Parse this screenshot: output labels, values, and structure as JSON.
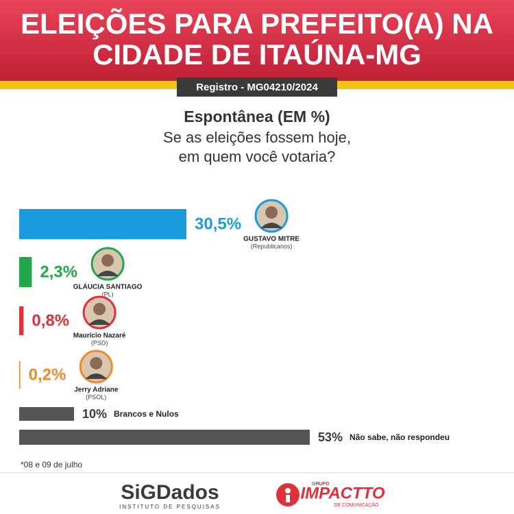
{
  "header": {
    "title_lines": [
      "ELEIÇÕES PARA PREFEITO(A) NA",
      "CIDADE DE ITAÚNA-MG"
    ],
    "registro": "Registro - MG04210/2024"
  },
  "chart_data": {
    "type": "bar",
    "title": "Espontânea (EM %)",
    "subtitle_lines": [
      "Se as eleições fossem hoje,",
      "em quem você votaria?"
    ],
    "categories": [
      "GUSTAVO MITRE",
      "GLÁUCIA SANTIAGO",
      "Maurício Nazaré",
      "Jerry Adriane",
      "Brancos e Nulos",
      "Não sabe, não respondeu"
    ],
    "parties": [
      "(Republicanos)",
      "(PL)",
      "(PSD)",
      "(PSOL)",
      null,
      null
    ],
    "values": [
      30.5,
      2.3,
      0.8,
      0.2,
      10,
      53
    ],
    "value_labels": [
      "30,5%",
      "2,3%",
      "0,8%",
      "0,2%",
      "10%",
      "53%"
    ],
    "colors": [
      "#1a9be0",
      "#22a84a",
      "#e0303a",
      "#f08a2a",
      "#555555",
      "#555555"
    ]
  },
  "footnote": "*08 e 09 de julho",
  "footer": {
    "sigdados": "SiGDados",
    "sigdados_sub": "INSTITUTO DE PESQUISAS",
    "impactto_top": "GRUPO",
    "impactto": "IMPACTTO",
    "impactto_sub": "DE COMUNICAÇÃO"
  }
}
